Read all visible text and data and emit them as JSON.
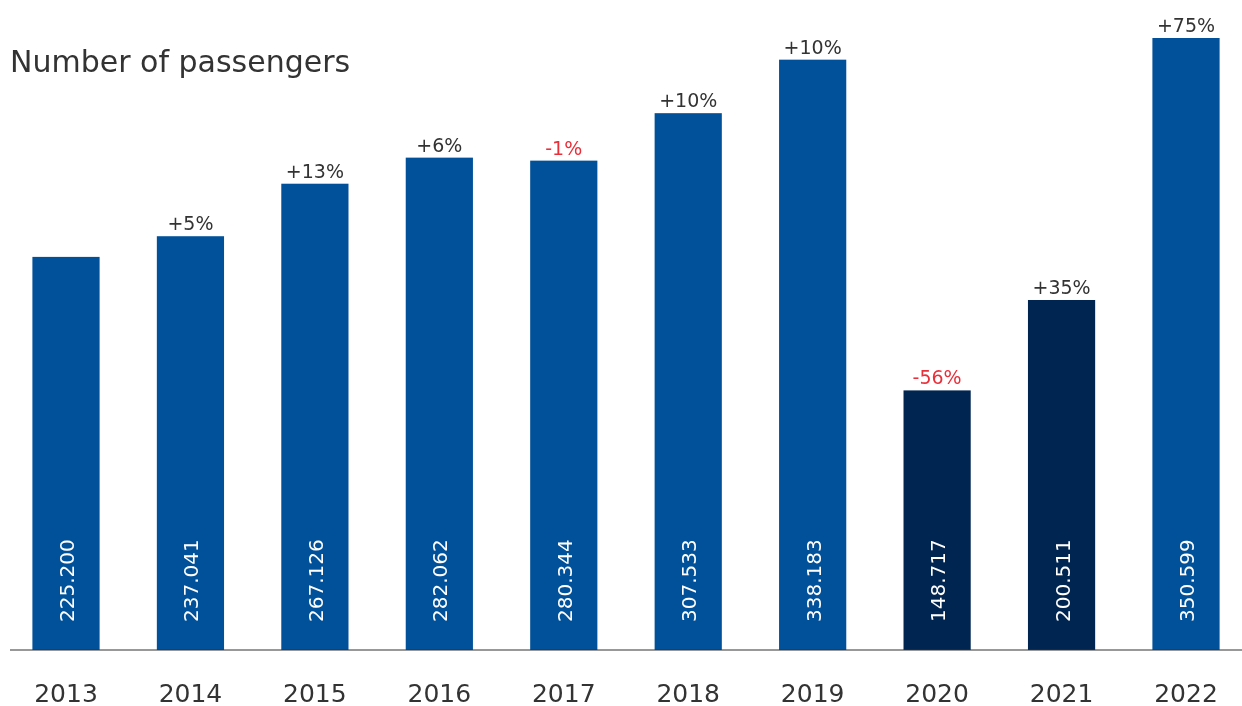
{
  "chart_data": {
    "type": "bar",
    "title": "Number of passengers",
    "categories": [
      "2013",
      "2014",
      "2015",
      "2016",
      "2017",
      "2018",
      "2019",
      "2020",
      "2021",
      "2022"
    ],
    "values": [
      225200,
      237041,
      267126,
      282062,
      280344,
      307533,
      338183,
      148717,
      200511,
      350599
    ],
    "value_labels": [
      "225.200",
      "237.041",
      "267.126",
      "282.062",
      "280.344",
      "307.533",
      "338.183",
      "148.717",
      "200.511",
      "350.599"
    ],
    "colors": [
      "#00519a",
      "#00519a",
      "#00519a",
      "#00519a",
      "#00519a",
      "#00519a",
      "#00519a",
      "#002550",
      "#002550",
      "#00519a"
    ],
    "ylim": [
      0,
      350599
    ],
    "annotations": [
      {
        "text": "+5%",
        "x": "2014",
        "y": 237041
      },
      {
        "text": "+13%",
        "x": "2015",
        "y": 267126
      },
      {
        "text": "+6%",
        "x": "2016",
        "y": 282062
      },
      {
        "text": "-1%",
        "x": "2017",
        "y": 280344
      },
      {
        "text": "+10%",
        "x": "2018",
        "y": 307533
      },
      {
        "text": "+10%",
        "x": "2019",
        "y": 338183
      },
      {
        "text": "-56%",
        "x": "2020",
        "y": 148717
      },
      {
        "text": "+35%",
        "x": "2021",
        "y": 200511
      },
      {
        "text": "+75%",
        "x": "2022",
        "y": 350599
      }
    ]
  }
}
